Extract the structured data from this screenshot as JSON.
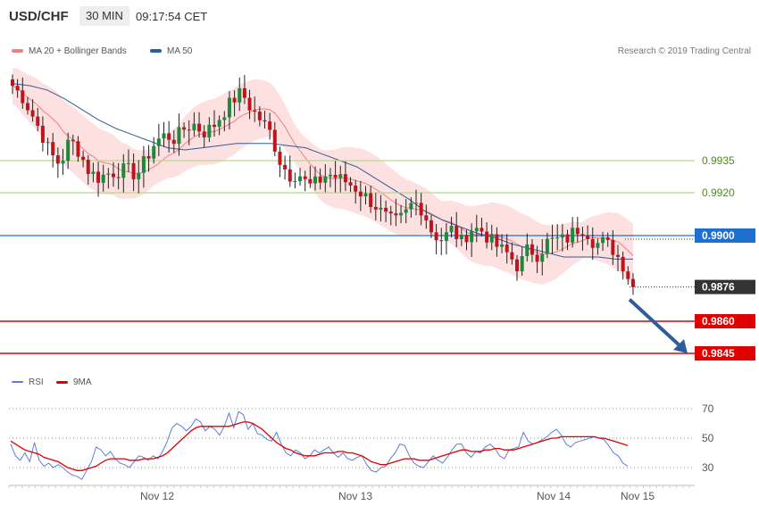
{
  "header": {
    "symbol": "USD/CHF",
    "timeframe": "30 MIN",
    "time": "09:17:54 CET"
  },
  "legend": {
    "items": [
      {
        "label": "MA 20 + Bollinger Bands",
        "color": "#f08080"
      },
      {
        "label": "MA 50",
        "color": "#2f5d9a"
      }
    ],
    "copyright": "Research © 2019 Trading Central"
  },
  "chart_data": [
    {
      "type": "candlestick",
      "panel": "price",
      "levels": [
        {
          "label": "0.9935",
          "value": 0.9935,
          "color": "#b5d98a",
          "kind": "resistance"
        },
        {
          "label": "0.9920",
          "value": 0.992,
          "color": "#b5d98a",
          "kind": "resistance"
        },
        {
          "label": "0.9900",
          "value": 0.99,
          "color": "#1f6fd1",
          "kind": "pivot"
        },
        {
          "label": "0.9876",
          "value": 0.9876,
          "color": "#333333",
          "kind": "last"
        },
        {
          "label": "0.9860",
          "value": 0.986,
          "color": "#e00000",
          "kind": "target"
        },
        {
          "label": "0.9845",
          "value": 0.9845,
          "color": "#e00000",
          "kind": "target"
        }
      ],
      "x_labels": [
        "Nov 12",
        "Nov 13",
        "Nov 14",
        "Nov 15"
      ],
      "price_path": [
        0.997,
        0.9965,
        0.9957,
        0.9948,
        0.9938,
        0.9933,
        0.9945,
        0.9939,
        0.993,
        0.9927,
        0.9929,
        0.993,
        0.9931,
        0.9928,
        0.9936,
        0.9944,
        0.9947,
        0.9945,
        0.995,
        0.9952,
        0.9948,
        0.9951,
        0.9957,
        0.9963,
        0.9967,
        0.9959,
        0.9954,
        0.9948,
        0.9935,
        0.9928,
        0.9929,
        0.9923,
        0.9925,
        0.9929,
        0.9927,
        0.9925,
        0.9922,
        0.9918,
        0.9914,
        0.9909,
        0.9906,
        0.9909,
        0.9916,
        0.9912,
        0.9901,
        0.9898,
        0.9903,
        0.9897,
        0.9903,
        0.9903,
        0.9898,
        0.9894,
        0.9891,
        0.9885,
        0.9894,
        0.9891,
        0.9897,
        0.9898,
        0.9898,
        0.9903,
        0.9903,
        0.9896,
        0.9897,
        0.9893,
        0.9886,
        0.9876
      ],
      "ma50_path": [
        0.9971,
        0.997,
        0.9968,
        0.9964,
        0.9959,
        0.9954,
        0.995,
        0.9947,
        0.9944,
        0.9941,
        0.994,
        0.9941,
        0.9942,
        0.9943,
        0.9943,
        0.9943,
        0.9942,
        0.9941,
        0.9938,
        0.9935,
        0.9932,
        0.9927,
        0.9922,
        0.9917,
        0.9911,
        0.9907,
        0.9904,
        0.9901,
        0.9899,
        0.9896,
        0.9894,
        0.9892,
        0.989,
        0.989,
        0.989,
        0.9889,
        0.9889
      ],
      "band_width": 0.0012
    },
    {
      "type": "line",
      "panel": "oscillator",
      "legend": [
        {
          "label": "RSI",
          "color": "#5b7fd6"
        },
        {
          "label": "9MA",
          "color": "#e00000"
        }
      ],
      "yticks": [
        70,
        50,
        30
      ],
      "ylim": [
        20,
        80
      ],
      "series": [
        {
          "name": "RSI",
          "color": "#5b7fd6",
          "values": [
            46,
            38,
            35,
            40,
            34,
            47,
            35,
            31,
            33,
            30,
            32,
            30,
            27,
            25,
            24,
            22,
            28,
            34,
            44,
            42,
            38,
            41,
            36,
            33,
            32,
            30,
            34,
            38,
            37,
            35,
            38,
            36,
            41,
            48,
            57,
            60,
            58,
            55,
            58,
            63,
            61,
            55,
            58,
            56,
            52,
            58,
            67,
            57,
            68,
            66,
            56,
            60,
            53,
            52,
            49,
            48,
            54,
            46,
            40,
            38,
            42,
            40,
            36,
            38,
            42,
            40,
            42,
            44,
            40,
            37,
            40,
            36,
            35,
            37,
            38,
            32,
            28,
            27,
            30,
            31,
            36,
            40,
            46,
            45,
            38,
            33,
            31,
            30,
            34,
            38,
            35,
            33,
            37,
            42,
            46,
            46,
            40,
            37,
            41,
            40,
            44,
            46,
            43,
            38,
            36,
            42,
            43,
            44,
            54,
            48,
            46,
            47,
            49,
            51,
            54,
            56,
            52,
            46,
            44,
            47,
            48,
            49,
            50,
            51,
            50,
            49,
            45,
            40,
            38,
            33,
            31
          ]
        },
        {
          "name": "9MA",
          "color": "#e00000",
          "values": [
            48,
            46,
            44,
            42,
            41,
            40,
            39,
            37,
            36,
            35,
            34,
            32,
            30,
            29,
            28,
            28,
            29,
            30,
            31,
            33,
            35,
            36,
            36,
            36,
            36,
            35,
            35,
            35,
            36,
            36,
            36,
            37,
            38,
            40,
            43,
            46,
            49,
            52,
            55,
            57,
            58,
            58,
            58,
            58,
            58,
            58,
            58,
            59,
            60,
            61,
            61,
            60,
            58,
            56,
            53,
            50,
            47,
            45,
            43,
            42,
            40,
            39,
            38,
            38,
            38,
            39,
            40,
            40,
            40,
            41,
            41,
            40,
            40,
            39,
            38,
            36,
            34,
            33,
            32,
            32,
            33,
            34,
            35,
            36,
            36,
            36,
            35,
            35,
            35,
            36,
            37,
            38,
            39,
            40,
            41,
            42,
            42,
            41,
            41,
            41,
            42,
            42,
            43,
            43,
            42,
            42,
            42,
            43,
            44,
            45,
            46,
            47,
            48,
            49,
            50,
            50,
            51,
            51,
            51,
            51,
            51,
            51,
            51,
            51,
            50,
            50,
            49,
            48,
            47,
            46,
            45
          ]
        }
      ]
    }
  ],
  "icons": [
    "forecast-arrow-icon"
  ]
}
